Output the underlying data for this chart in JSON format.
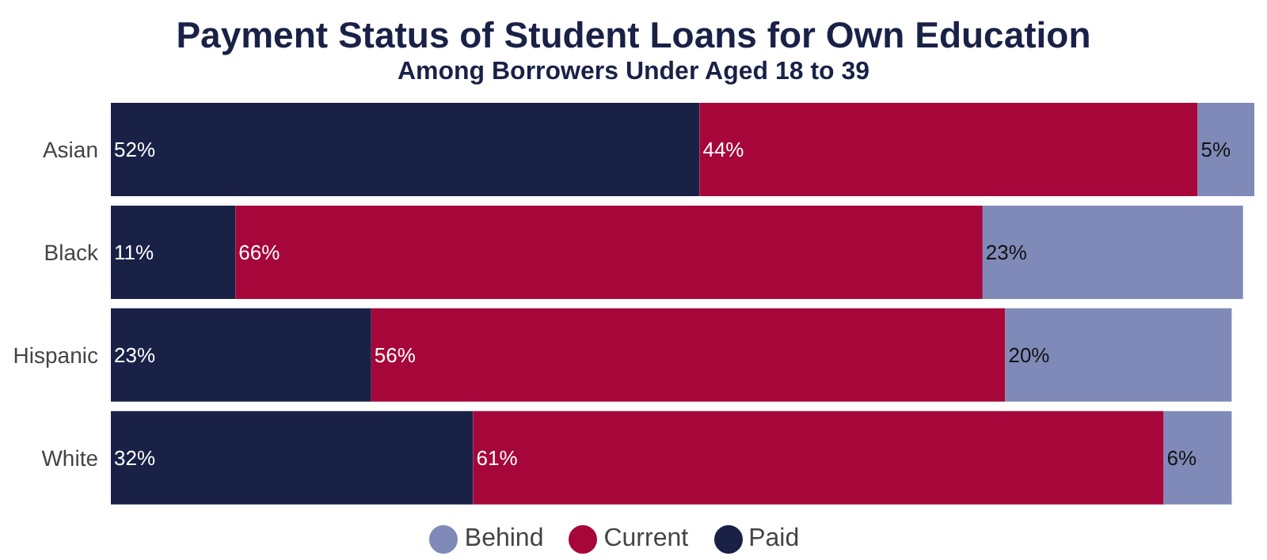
{
  "chart_data": {
    "type": "bar",
    "orientation": "horizontal",
    "stacked": true,
    "title": "Payment Status of Student Loans for Own Education",
    "subtitle": "Among Borrowers Under Aged 18 to 39",
    "categories": [
      "Asian",
      "Black",
      "Hispanic",
      "White"
    ],
    "series": [
      {
        "name": "Paid",
        "color": "#1a2147",
        "values": [
          52,
          11,
          23,
          32
        ],
        "value_labels": [
          "52%",
          "11%",
          "23%",
          "32%"
        ]
      },
      {
        "name": "Current",
        "color": "#a6063a",
        "values": [
          44,
          66,
          56,
          61
        ],
        "value_labels": [
          "44%",
          "66%",
          "56%",
          "61%"
        ]
      },
      {
        "name": "Behind",
        "color": "#7f8ab8",
        "values": [
          5,
          23,
          20,
          6
        ],
        "value_labels": [
          "5%",
          "23%",
          "20%",
          "6%"
        ]
      }
    ],
    "legend": "bottom",
    "grid": false,
    "tick_labels": "y"
  }
}
